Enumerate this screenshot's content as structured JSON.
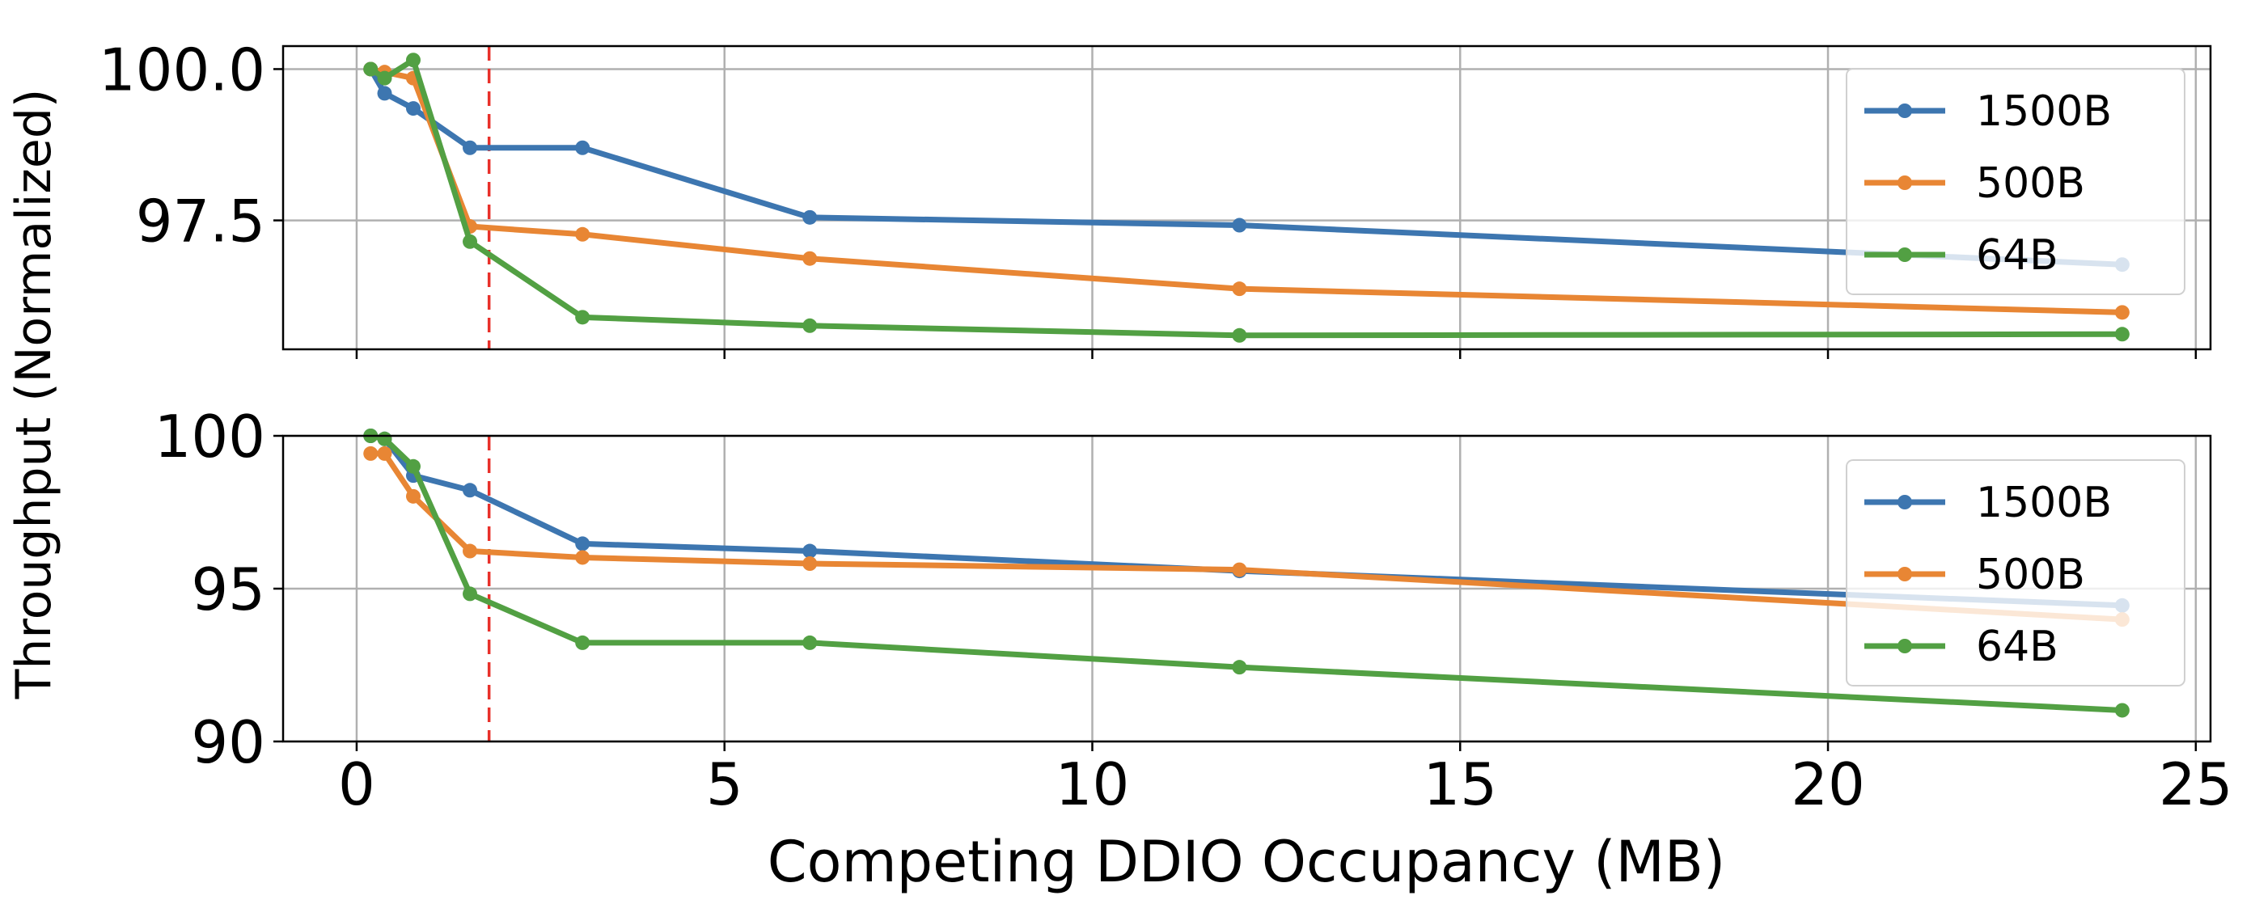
{
  "chart_data": [
    {
      "type": "line",
      "ylabel": "Throughput (Normalized)",
      "xlabel": "Competing DDIO Occupancy (MB)",
      "xlim": [
        -1.0,
        25.2
      ],
      "ylim": [
        95.37,
        100.38
      ],
      "xticks": [
        0,
        5,
        10,
        15,
        20,
        25
      ],
      "yticks": [
        97.5,
        100.0
      ],
      "ytick_labels": [
        "97.5",
        "100.0"
      ],
      "grid": true,
      "legend": "right",
      "vline": {
        "x": 1.8,
        "color": "#e8302a",
        "style": "dashed"
      },
      "x": [
        0.19,
        0.38,
        0.77,
        1.54,
        3.07,
        6.16,
        12.0,
        24.0
      ],
      "series": [
        {
          "name": "1500B",
          "color": "#3d76b0",
          "values": [
            100.0,
            99.6,
            99.35,
            98.7,
            98.7,
            97.55,
            97.42,
            96.77
          ]
        },
        {
          "name": "500B",
          "color": "#e88634",
          "values": [
            100.0,
            99.95,
            99.85,
            97.4,
            97.27,
            96.87,
            96.37,
            95.98
          ]
        },
        {
          "name": "64B",
          "color": "#52a043",
          "values": [
            100.0,
            99.85,
            100.15,
            97.15,
            95.9,
            95.76,
            95.6,
            95.62
          ]
        }
      ]
    },
    {
      "type": "line",
      "xlim": [
        -1.0,
        25.2
      ],
      "ylim": [
        90,
        100
      ],
      "xticks": [
        0,
        5,
        10,
        15,
        20,
        25
      ],
      "xtick_labels": [
        "0",
        "5",
        "10",
        "15",
        "20",
        "25"
      ],
      "yticks": [
        90,
        95,
        100
      ],
      "ytick_labels": [
        "90",
        "95",
        "100"
      ],
      "grid": true,
      "legend": "right",
      "vline": {
        "x": 1.8,
        "color": "#e8302a",
        "style": "dashed"
      },
      "x": [
        0.19,
        0.38,
        0.77,
        1.54,
        3.07,
        6.16,
        12.0,
        24.0
      ],
      "series": [
        {
          "name": "1500B",
          "color": "#3d76b0",
          "values": [
            100.0,
            99.9,
            98.7,
            98.22,
            96.47,
            96.23,
            95.58,
            94.45
          ]
        },
        {
          "name": "500B",
          "color": "#e88634",
          "values": [
            99.42,
            99.42,
            98.02,
            96.23,
            96.02,
            95.82,
            95.62,
            93.99
          ]
        },
        {
          "name": "64B",
          "color": "#52a043",
          "values": [
            100.0,
            99.9,
            99.0,
            94.83,
            93.23,
            93.23,
            92.43,
            91.02
          ]
        }
      ]
    }
  ]
}
